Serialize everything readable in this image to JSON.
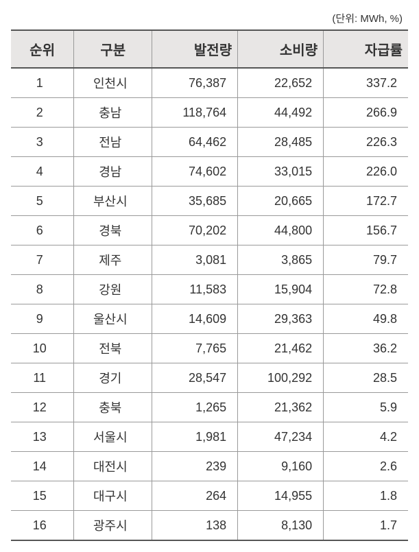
{
  "unit_label": "(단위: MWh, %)",
  "table": {
    "columns": [
      "순위",
      "구분",
      "발전량",
      "소비량",
      "자급률"
    ],
    "column_classes": [
      "col-rank",
      "col-region",
      "col-num",
      "col-num",
      "col-num"
    ],
    "header_bg": "#e8e6e5",
    "border_color": "#999999",
    "font_color": "#333333",
    "rows": [
      {
        "rank": "1",
        "region": "인천시",
        "generation": "76,387",
        "consumption": "22,652",
        "self_rate": "337.2"
      },
      {
        "rank": "2",
        "region": "충남",
        "generation": "118,764",
        "consumption": "44,492",
        "self_rate": "266.9"
      },
      {
        "rank": "3",
        "region": "전남",
        "generation": "64,462",
        "consumption": "28,485",
        "self_rate": "226.3"
      },
      {
        "rank": "4",
        "region": "경남",
        "generation": "74,602",
        "consumption": "33,015",
        "self_rate": "226.0"
      },
      {
        "rank": "5",
        "region": "부산시",
        "generation": "35,685",
        "consumption": "20,665",
        "self_rate": "172.7"
      },
      {
        "rank": "6",
        "region": "경북",
        "generation": "70,202",
        "consumption": "44,800",
        "self_rate": "156.7"
      },
      {
        "rank": "7",
        "region": "제주",
        "generation": "3,081",
        "consumption": "3,865",
        "self_rate": "79.7"
      },
      {
        "rank": "8",
        "region": "강원",
        "generation": "11,583",
        "consumption": "15,904",
        "self_rate": "72.8"
      },
      {
        "rank": "9",
        "region": "울산시",
        "generation": "14,609",
        "consumption": "29,363",
        "self_rate": "49.8"
      },
      {
        "rank": "10",
        "region": "전북",
        "generation": "7,765",
        "consumption": "21,462",
        "self_rate": "36.2"
      },
      {
        "rank": "11",
        "region": "경기",
        "generation": "28,547",
        "consumption": "100,292",
        "self_rate": "28.5"
      },
      {
        "rank": "12",
        "region": "충북",
        "generation": "1,265",
        "consumption": "21,362",
        "self_rate": "5.9"
      },
      {
        "rank": "13",
        "region": "서울시",
        "generation": "1,981",
        "consumption": "47,234",
        "self_rate": "4.2"
      },
      {
        "rank": "14",
        "region": "대전시",
        "generation": "239",
        "consumption": "9,160",
        "self_rate": "2.6"
      },
      {
        "rank": "15",
        "region": "대구시",
        "generation": "264",
        "consumption": "14,955",
        "self_rate": "1.8"
      },
      {
        "rank": "16",
        "region": "광주시",
        "generation": "138",
        "consumption": "8,130",
        "self_rate": "1.7"
      }
    ]
  }
}
